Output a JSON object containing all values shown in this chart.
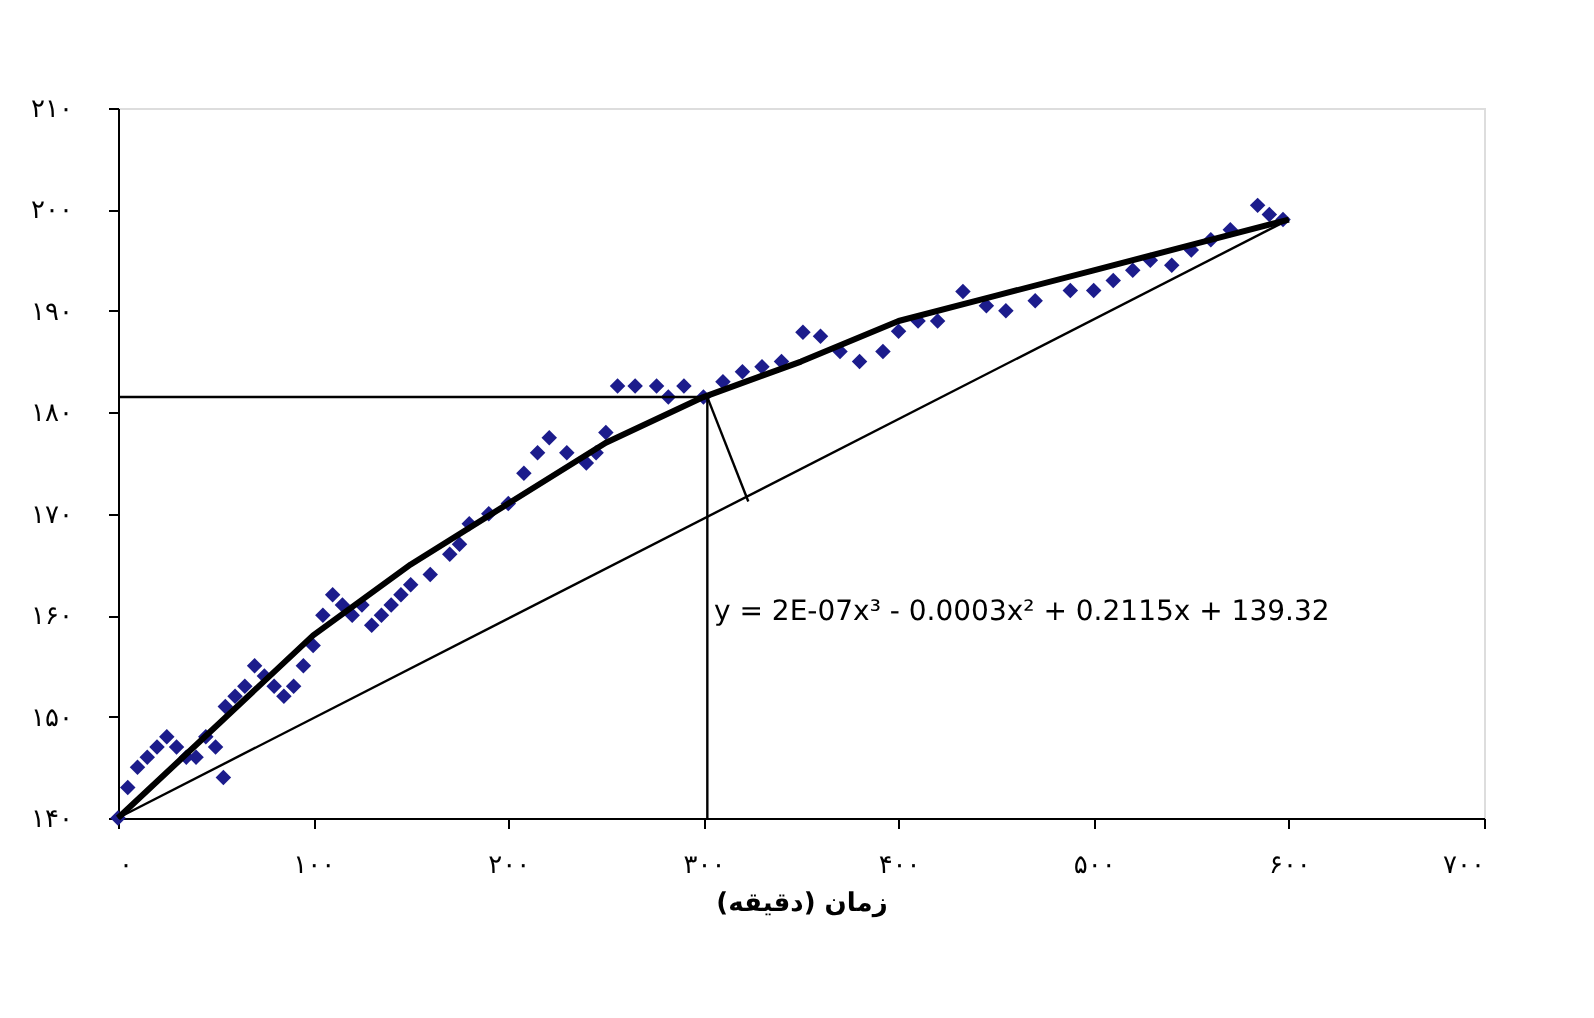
{
  "chart_data": {
    "type": "scatter",
    "xlabel": "زمان (دقیقه)",
    "marker": "diamond",
    "grid": false,
    "xlim": [
      0,
      700
    ],
    "ylim": [
      140,
      210
    ],
    "xticks": [
      {
        "value": 0,
        "label": "۰"
      },
      {
        "value": 100,
        "label": "۱۰۰"
      },
      {
        "value": 200,
        "label": "۲۰۰"
      },
      {
        "value": 300,
        "label": "۳۰۰"
      },
      {
        "value": 400,
        "label": "۴۰۰"
      },
      {
        "value": 500,
        "label": "۵۰۰"
      },
      {
        "value": 600,
        "label": "۶۰۰"
      },
      {
        "value": 700,
        "label": "۷۰۰"
      }
    ],
    "yticks": [
      {
        "value": 140,
        "label": "۱۴۰"
      },
      {
        "value": 150,
        "label": "۱۵۰"
      },
      {
        "value": 160,
        "label": "۱۶۰"
      },
      {
        "value": 170,
        "label": "۱۷۰"
      },
      {
        "value": 180,
        "label": "۱۸۰"
      },
      {
        "value": 190,
        "label": "۱۹۰"
      },
      {
        "value": 200,
        "label": "۲۰۰"
      },
      {
        "value": 210,
        "label": "۲۱۰"
      }
    ],
    "annotations": [
      "y = 2E-07x³ - 0.0003x² + 0.2115x + 139.32"
    ],
    "series": [
      {
        "color": "#1c1c8c",
        "x": [
          0,
          5,
          10,
          15,
          20,
          25,
          30,
          35,
          40,
          45,
          50,
          54,
          55,
          60,
          65,
          70,
          75,
          80,
          85,
          90,
          95,
          100,
          105,
          110,
          115,
          120,
          125,
          130,
          135,
          140,
          145,
          150,
          160,
          170,
          175,
          180,
          190,
          200,
          208,
          215,
          221,
          230,
          240,
          245,
          250,
          256,
          265,
          276,
          282,
          290,
          300,
          310,
          320,
          330,
          340,
          351,
          360,
          370,
          380,
          392,
          400,
          410,
          420,
          433,
          445,
          455,
          470,
          488,
          500,
          510,
          520,
          529,
          540,
          550,
          560,
          570,
          584,
          590,
          597
        ],
        "values": [
          140,
          143,
          145,
          146,
          147,
          148,
          147,
          146,
          146,
          148,
          147,
          144,
          151,
          152,
          153,
          155,
          154,
          153,
          152,
          153,
          155,
          157,
          160,
          162,
          161,
          160,
          161,
          159,
          160,
          161,
          162,
          163,
          164,
          166,
          167,
          169,
          170,
          171,
          174,
          176,
          177.5,
          176,
          175,
          176,
          178,
          182.6,
          182.6,
          182.6,
          181.5,
          182.6,
          181.5,
          183,
          184,
          184.5,
          185,
          187.9,
          187.5,
          186,
          185,
          186,
          188,
          189,
          189,
          191.9,
          190.5,
          190,
          191,
          192,
          192,
          193,
          194,
          195,
          194.5,
          196,
          197,
          198,
          200.4,
          199.5,
          199
        ]
      },
      {
        "type": "line",
        "marker": "none",
        "line_style": "solid",
        "color": "#000000",
        "x": [
          0,
          50,
          100,
          150,
          200,
          250,
          300,
          350,
          400,
          450,
          500,
          550,
          600
        ],
        "values": [
          140,
          149,
          158,
          165,
          171,
          177,
          181.5,
          185,
          189,
          191.5,
          194,
          196.5,
          199
        ]
      },
      {
        "type": "line",
        "marker": "none",
        "line_style": "solid",
        "color": "#000000",
        "x": [
          0,
          600
        ],
        "values": [
          140,
          199
        ]
      },
      {
        "type": "line",
        "marker": "none",
        "line_style": "solid",
        "color": "#000000",
        "x": [
          0,
          302
        ],
        "values": [
          181.5,
          181.5
        ]
      },
      {
        "type": "line",
        "marker": "none",
        "line_style": "solid",
        "color": "#000000",
        "x": [
          302,
          302
        ],
        "values": [
          181.5,
          140
        ]
      },
      {
        "type": "line",
        "marker": "none",
        "line_style": "solid",
        "color": "#000000",
        "x": [
          302,
          323
        ],
        "values": [
          181.5,
          171.2
        ]
      }
    ]
  }
}
